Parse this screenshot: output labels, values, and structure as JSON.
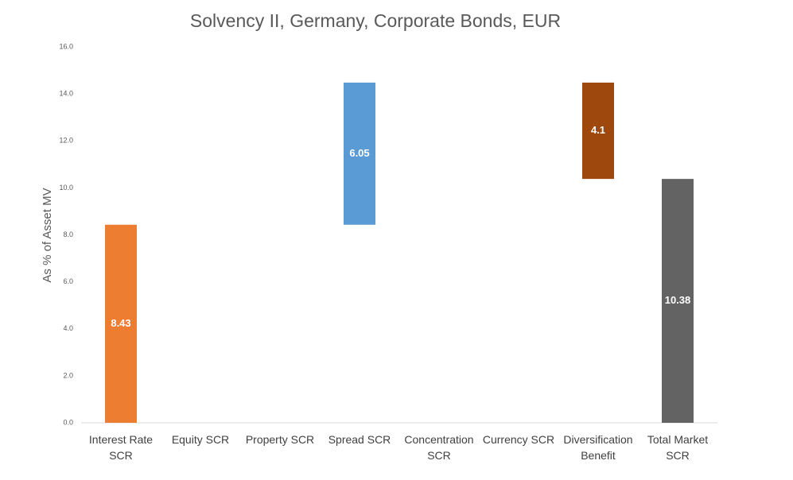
{
  "chart_data": {
    "type": "waterfall",
    "title": "Solvency II, Germany, Corporate Bonds, EUR",
    "y_label": "As % of Asset MV",
    "categories": [
      "Interest Rate SCR",
      "Equity SCR",
      "Property SCR",
      "Spread SCR",
      "Concentration SCR",
      "Currency SCR",
      "Diversification Benefit",
      "Total Market SCR"
    ],
    "values": [
      8.43,
      null,
      null,
      6.05,
      null,
      null,
      -4.1,
      10.38
    ],
    "value_labels": [
      "8.43",
      null,
      null,
      "6.05",
      null,
      null,
      "4.1",
      "10.38"
    ],
    "colors": [
      "#ed7d31",
      null,
      null,
      "#5b9bd5",
      null,
      null,
      "#9e480e",
      "#636363"
    ],
    "total_index": 7,
    "ylim": [
      0,
      16
    ],
    "yticks": [
      {
        "value": 0,
        "label": "0.0"
      },
      {
        "value": 2,
        "label": "2.0"
      },
      {
        "value": 4,
        "label": "4.0"
      },
      {
        "value": 6,
        "label": "6.0"
      },
      {
        "value": 8,
        "label": "8.0"
      },
      {
        "value": 10,
        "label": "10.0"
      },
      {
        "value": 12,
        "label": "12.0"
      },
      {
        "value": 14,
        "label": "14.0"
      },
      {
        "value": 16,
        "label": "16.0"
      }
    ],
    "grid": false
  }
}
